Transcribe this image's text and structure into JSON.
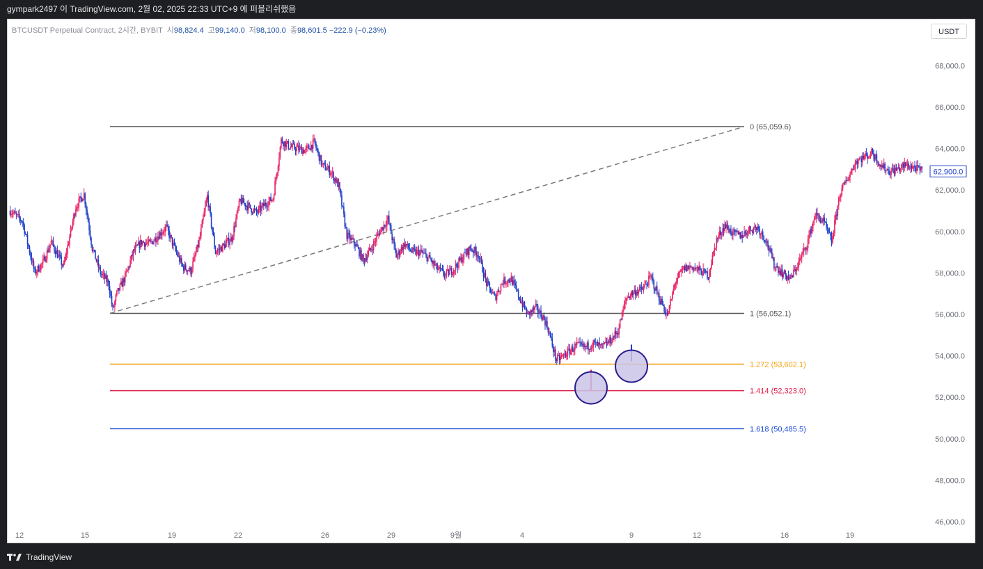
{
  "header": {
    "publish_text": "gympark2497 이 TradingView.com, 2월 02, 2025 22:33 UTC+9 에 퍼블리쉬했음"
  },
  "symbol": {
    "name": "BTCUSDT Perpetual Contract, 2시간, BYBIT",
    "open_label": "시",
    "open": "98,824.4",
    "high_label": "고",
    "high": "99,140.0",
    "low_label": "저",
    "low": "98,100.0",
    "close_label": "종",
    "close": "98,601.5",
    "change": "−222.9 (−0.23%)"
  },
  "currency_button": "USDT",
  "current_price_label": "62,900.0",
  "footer": {
    "brand": "TradingView"
  },
  "colors": {
    "up": "#e91e63",
    "down": "#1e40c8",
    "fib_0": "#555555",
    "fib_1": "#555555",
    "fib_1272": "#f59e0b",
    "fib_1414": "#e11d48",
    "fib_1618": "#1d4ed8",
    "circle_fill": "#c9c4e6",
    "circle_stroke": "#2a1f8f"
  },
  "chart_data": {
    "type": "line",
    "title": "",
    "x_ticks": [
      "12",
      "15",
      "19",
      "22",
      "26",
      "29",
      "9월",
      "4",
      "9",
      "12",
      "16",
      "19"
    ],
    "y_ticks": [
      "68,000.0",
      "66,000.0",
      "64,000.0",
      "62,000.0",
      "60,000.0",
      "58,000.0",
      "56,000.0",
      "54,000.0",
      "52,000.0",
      "50,000.0",
      "48,000.0",
      "46,000.0"
    ],
    "y_tick_values": [
      68000,
      66000,
      64000,
      62000,
      60000,
      58000,
      56000,
      54000,
      52000,
      50000,
      48000,
      46000
    ],
    "ylim": [
      45500,
      69500
    ],
    "price_path_points": [
      [
        0,
        61000
      ],
      [
        3,
        60500
      ],
      [
        6,
        58000
      ],
      [
        8,
        58500
      ],
      [
        10,
        59500
      ],
      [
        13,
        58300
      ],
      [
        16,
        61200
      ],
      [
        18,
        61800
      ],
      [
        20,
        59200
      ],
      [
        22,
        58000
      ],
      [
        24,
        57500
      ],
      [
        25,
        56200
      ],
      [
        26,
        57000
      ],
      [
        28,
        57800
      ],
      [
        30,
        59000
      ],
      [
        32,
        59500
      ],
      [
        34,
        59400
      ],
      [
        36,
        59800
      ],
      [
        38,
        60200
      ],
      [
        40,
        59200
      ],
      [
        42,
        58300
      ],
      [
        44,
        58100
      ],
      [
        46,
        59500
      ],
      [
        48,
        61700
      ],
      [
        50,
        59000
      ],
      [
        52,
        59300
      ],
      [
        54,
        59700
      ],
      [
        56,
        61500
      ],
      [
        58,
        61200
      ],
      [
        60,
        60900
      ],
      [
        62,
        61300
      ],
      [
        64,
        61600
      ],
      [
        66,
        64400
      ],
      [
        68,
        64100
      ],
      [
        70,
        64000
      ],
      [
        72,
        63900
      ],
      [
        74,
        64300
      ],
      [
        76,
        63200
      ],
      [
        78,
        62900
      ],
      [
        80,
        62200
      ],
      [
        82,
        59800
      ],
      [
        84,
        59400
      ],
      [
        86,
        58600
      ],
      [
        88,
        59200
      ],
      [
        90,
        60000
      ],
      [
        92,
        60600
      ],
      [
        94,
        58800
      ],
      [
        96,
        59400
      ],
      [
        98,
        59000
      ],
      [
        100,
        59000
      ],
      [
        102,
        58700
      ],
      [
        104,
        58200
      ],
      [
        106,
        57900
      ],
      [
        108,
        58200
      ],
      [
        110,
        58700
      ],
      [
        112,
        59200
      ],
      [
        114,
        58900
      ],
      [
        116,
        57500
      ],
      [
        118,
        56800
      ],
      [
        120,
        57600
      ],
      [
        122,
        57700
      ],
      [
        124,
        56800
      ],
      [
        126,
        56000
      ],
      [
        128,
        56300
      ],
      [
        130,
        55800
      ],
      [
        131,
        55300
      ],
      [
        132,
        54500
      ],
      [
        133,
        53800
      ],
      [
        134,
        53900
      ],
      [
        136,
        54200
      ],
      [
        138,
        54500
      ],
      [
        140,
        54400
      ],
      [
        142,
        54600
      ],
      [
        144,
        54400
      ],
      [
        146,
        54700
      ],
      [
        148,
        55200
      ],
      [
        150,
        56800
      ],
      [
        152,
        57100
      ],
      [
        154,
        57200
      ],
      [
        156,
        57800
      ],
      [
        158,
        56800
      ],
      [
        159,
        56400
      ],
      [
        160,
        55900
      ],
      [
        162,
        57600
      ],
      [
        164,
        58200
      ],
      [
        166,
        58300
      ],
      [
        168,
        58100
      ],
      [
        170,
        57900
      ],
      [
        172,
        59600
      ],
      [
        174,
        60300
      ],
      [
        176,
        59900
      ],
      [
        178,
        59800
      ],
      [
        180,
        60100
      ],
      [
        182,
        60200
      ],
      [
        184,
        59600
      ],
      [
        186,
        58400
      ],
      [
        188,
        58000
      ],
      [
        190,
        57700
      ],
      [
        192,
        58500
      ],
      [
        194,
        59400
      ],
      [
        196,
        60800
      ],
      [
        198,
        60500
      ],
      [
        200,
        59500
      ],
      [
        202,
        61800
      ],
      [
        204,
        62600
      ],
      [
        206,
        63400
      ],
      [
        208,
        63600
      ],
      [
        210,
        63800
      ],
      [
        212,
        63200
      ],
      [
        214,
        62900
      ],
      [
        216,
        63000
      ],
      [
        218,
        63200
      ],
      [
        220,
        63100
      ],
      [
        222,
        62900
      ]
    ],
    "fib_levels": [
      {
        "ratio": "0",
        "value": 65059.6,
        "label": "0 (65,059.6)"
      },
      {
        "ratio": "1",
        "value": 56052.1,
        "label": "1 (56,052.1)"
      },
      {
        "ratio": "1.272",
        "value": 53602.1,
        "label": "1.272 (53,602.1)"
      },
      {
        "ratio": "1.414",
        "value": 52323.0,
        "label": "1.414 (52,323.0)"
      },
      {
        "ratio": "1.618",
        "value": 50485.5,
        "label": "1.618 (50,485.5)"
      }
    ],
    "trend_line": {
      "from_value": 56052.1,
      "to_value": 65059.6
    },
    "marked_lows": [
      {
        "value": 52323.0
      },
      {
        "value": 53602.1
      }
    ],
    "current_price": 62900.0
  }
}
